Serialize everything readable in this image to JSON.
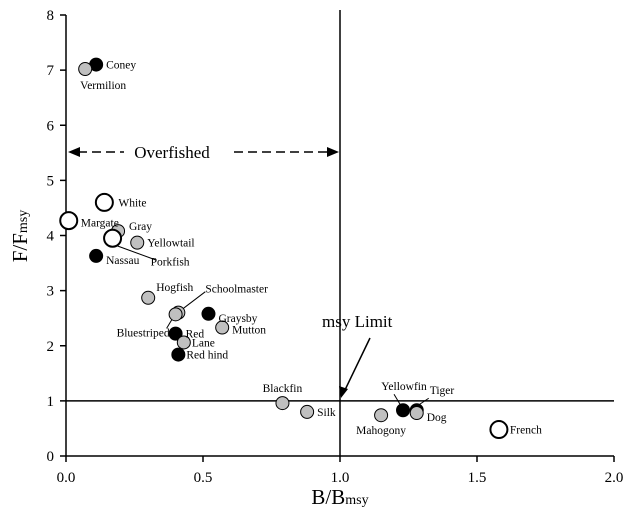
{
  "chart_data": {
    "type": "scatter",
    "xlabel": "B/B",
    "xlabel_sub": "msy",
    "ylabel": "F/F",
    "ylabel_sub": "msy",
    "xlim": [
      0,
      2.0
    ],
    "ylim": [
      0,
      8
    ],
    "xticks": [
      "0.0",
      "0.5",
      "1.0",
      "1.5",
      "2.0"
    ],
    "yticks": [
      "0",
      "1",
      "2",
      "3",
      "4",
      "5",
      "6",
      "7",
      "8"
    ],
    "reference_lines": {
      "vertical_x": 1.0,
      "horizontal_y": 1.0
    },
    "annotations": {
      "overfished": "Overfished",
      "msy_limit": "msy Limit"
    },
    "marker_types": {
      "black": "#000000",
      "gray": "#c0c0c0",
      "open": "#ffffff"
    },
    "points": [
      {
        "name": "Coney",
        "x": 0.11,
        "y": 7.1,
        "marker": "black"
      },
      {
        "name": "Vermilion",
        "x": 0.07,
        "y": 7.02,
        "marker": "gray"
      },
      {
        "name": "White",
        "x": 0.14,
        "y": 4.6,
        "marker": "open"
      },
      {
        "name": "Margate",
        "x": 0.01,
        "y": 4.27,
        "marker": "open"
      },
      {
        "name": "Gray",
        "x": 0.19,
        "y": 4.08,
        "marker": "gray"
      },
      {
        "name": "Porkfish",
        "x": 0.17,
        "y": 3.95,
        "marker": "open"
      },
      {
        "name": "Yellowtail",
        "x": 0.26,
        "y": 3.87,
        "marker": "gray"
      },
      {
        "name": "Nassau",
        "x": 0.11,
        "y": 3.63,
        "marker": "black"
      },
      {
        "name": "Hogfish",
        "x": 0.3,
        "y": 2.87,
        "marker": "gray"
      },
      {
        "name": "Schoolmaster",
        "x": 0.41,
        "y": 2.6,
        "marker": "gray"
      },
      {
        "name": "Bluestriped",
        "x": 0.4,
        "y": 2.57,
        "marker": "gray"
      },
      {
        "name": "Graysby",
        "x": 0.52,
        "y": 2.58,
        "marker": "black"
      },
      {
        "name": "Mutton",
        "x": 0.57,
        "y": 2.33,
        "marker": "gray"
      },
      {
        "name": "Red",
        "x": 0.4,
        "y": 2.22,
        "marker": "black"
      },
      {
        "name": "Lane",
        "x": 0.43,
        "y": 2.06,
        "marker": "gray"
      },
      {
        "name": "Red hind",
        "x": 0.41,
        "y": 1.84,
        "marker": "black"
      },
      {
        "name": "Blackfin",
        "x": 0.79,
        "y": 0.96,
        "marker": "gray"
      },
      {
        "name": "Silk",
        "x": 0.88,
        "y": 0.8,
        "marker": "gray"
      },
      {
        "name": "Mahogony",
        "x": 1.15,
        "y": 0.74,
        "marker": "gray"
      },
      {
        "name": "Yellowfin",
        "x": 1.23,
        "y": 0.83,
        "marker": "black"
      },
      {
        "name": "Tiger",
        "x": 1.28,
        "y": 0.83,
        "marker": "black"
      },
      {
        "name": "Dog",
        "x": 1.28,
        "y": 0.78,
        "marker": "gray"
      },
      {
        "name": "French",
        "x": 1.58,
        "y": 0.48,
        "marker": "open"
      }
    ]
  }
}
